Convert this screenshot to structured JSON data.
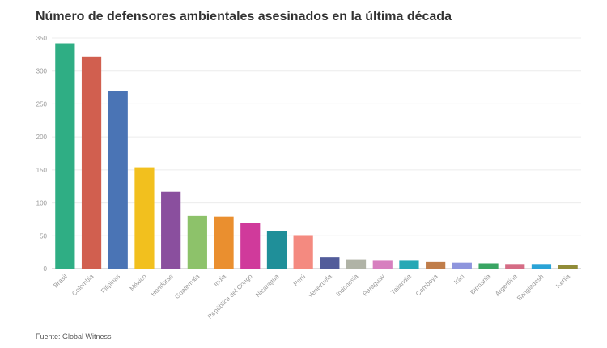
{
  "title": "Número de defensores ambientales asesinados en la última década",
  "source": "Fuente: Global Witness",
  "chart_data": {
    "type": "bar",
    "title": "Número de defensores ambientales asesinados en la última década",
    "xlabel": "",
    "ylabel": "",
    "ylim": [
      0,
      350
    ],
    "yticks": [
      0,
      50,
      100,
      150,
      200,
      250,
      300,
      350
    ],
    "grid": true,
    "legend": "none",
    "categories": [
      "Brasil",
      "Colombia",
      "Filipinas",
      "México",
      "Honduras",
      "Guatemala",
      "India",
      "República del Congo",
      "Nicaragua",
      "Perú",
      "Venezuela",
      "Indonesia",
      "Paraguay",
      "Tailandia",
      "Camboya",
      "Irán",
      "Birmania",
      "Argentina",
      "Bangladesh",
      "Kenia"
    ],
    "values": [
      342,
      322,
      270,
      154,
      117,
      80,
      79,
      70,
      57,
      51,
      17,
      14,
      13,
      13,
      10,
      9,
      8,
      7,
      7,
      6
    ],
    "colors": [
      "#2fae84",
      "#d15f4f",
      "#4a74b5",
      "#f2c01e",
      "#8a4f9e",
      "#8dc26a",
      "#ea8f2f",
      "#d03a9b",
      "#1f8f99",
      "#f48a80",
      "#525c9a",
      "#b0b3a6",
      "#d77fbf",
      "#27a8b5",
      "#c07d4a",
      "#8e95dd",
      "#39a563",
      "#d56c85",
      "#2aa3d6",
      "#918c38"
    ]
  }
}
